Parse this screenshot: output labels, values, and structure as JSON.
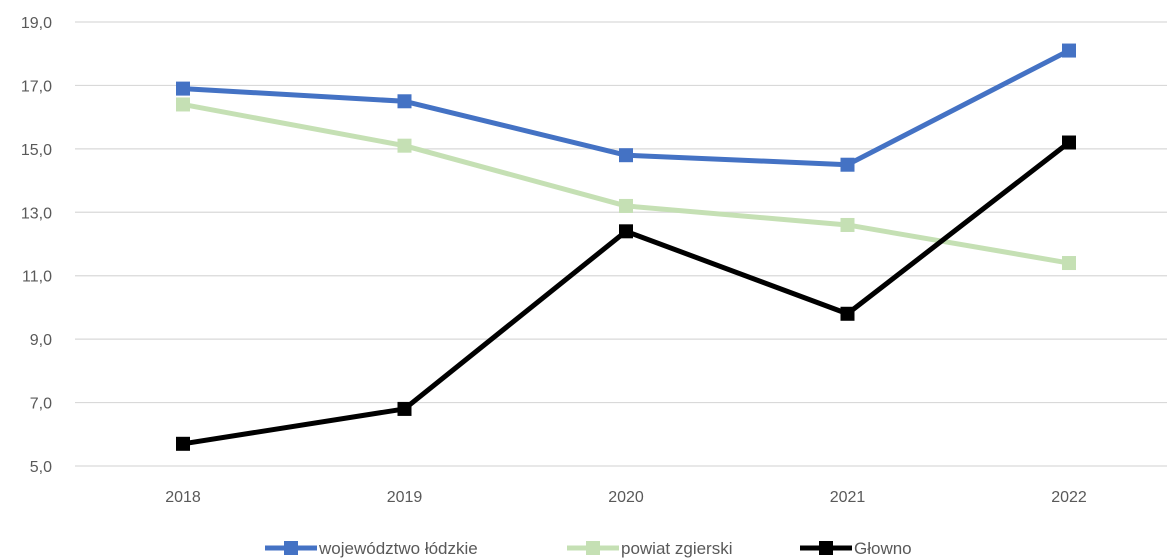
{
  "chart_data": {
    "type": "line",
    "categories": [
      "2018",
      "2019",
      "2020",
      "2021",
      "2022"
    ],
    "series": [
      {
        "name": "województwo łódzkie",
        "values": [
          16.9,
          16.5,
          14.8,
          14.5,
          18.1
        ],
        "color": "#4472C4"
      },
      {
        "name": "powiat zgierski",
        "values": [
          16.4,
          15.1,
          13.2,
          12.6,
          11.4
        ],
        "color": "#C5E0B4"
      },
      {
        "name": "Głowno",
        "values": [
          5.7,
          6.8,
          12.4,
          9.8,
          15.2
        ],
        "color": "#000000"
      }
    ],
    "ylim": [
      5,
      19
    ],
    "yticks": [
      5,
      7,
      9,
      11,
      13,
      15,
      17,
      19
    ],
    "ytick_labels": [
      "5,0",
      "7,0",
      "9,0",
      "11,0",
      "13,0",
      "15,0",
      "17,0",
      "19,0"
    ],
    "grid": true,
    "gridline_color": "#D9D9D9",
    "legend_position": "bottom",
    "marker": "square"
  }
}
